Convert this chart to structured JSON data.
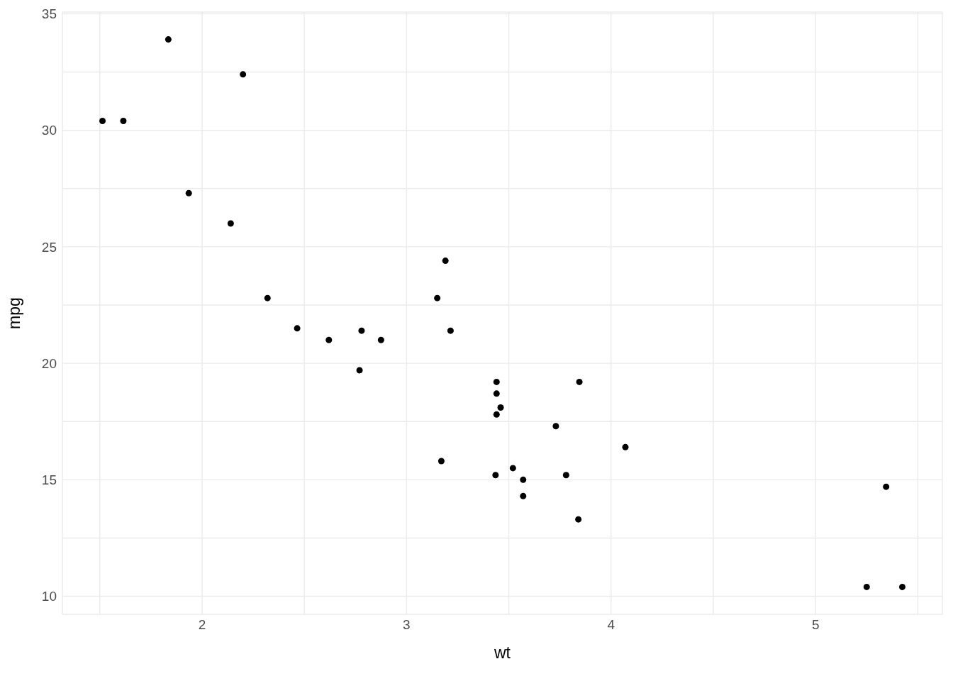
{
  "chart_data": {
    "type": "scatter",
    "xlabel": "wt",
    "ylabel": "mpg",
    "x": [
      2.62,
      2.875,
      2.32,
      3.215,
      3.44,
      3.46,
      3.57,
      3.19,
      3.15,
      3.44,
      3.44,
      4.07,
      3.73,
      3.78,
      5.25,
      5.424,
      5.345,
      2.2,
      1.615,
      1.835,
      2.465,
      3.52,
      3.435,
      3.84,
      3.845,
      1.935,
      2.14,
      1.513,
      3.17,
      2.77,
      3.57,
      2.78
    ],
    "values": [
      21.0,
      21.0,
      22.8,
      21.4,
      18.7,
      18.1,
      14.3,
      24.4,
      22.8,
      19.2,
      17.8,
      16.4,
      17.3,
      15.2,
      10.4,
      10.4,
      14.7,
      32.4,
      30.4,
      33.9,
      21.5,
      15.5,
      15.2,
      13.3,
      19.2,
      27.3,
      26.0,
      30.4,
      15.8,
      19.7,
      15.0,
      21.4
    ],
    "color": "#000000",
    "marker": "circle",
    "grid": true,
    "xlim": [
      1.317,
      5.62
    ],
    "ylim": [
      9.225,
      35.075
    ],
    "xticks": [
      {
        "value": 1.5,
        "label": null
      },
      2,
      {
        "value": 2.5,
        "label": null
      },
      3,
      {
        "value": 3.5,
        "label": null
      },
      4,
      {
        "value": 4.5,
        "label": null
      },
      5,
      {
        "value": 5.5,
        "label": null
      }
    ],
    "yticks": [
      10,
      {
        "value": 12.5,
        "label": null
      },
      15,
      {
        "value": 17.5,
        "label": null
      },
      20,
      {
        "value": 22.5,
        "label": null
      },
      25,
      {
        "value": 27.5,
        "label": null
      },
      30,
      {
        "value": 32.5,
        "label": null
      },
      35
    ]
  }
}
